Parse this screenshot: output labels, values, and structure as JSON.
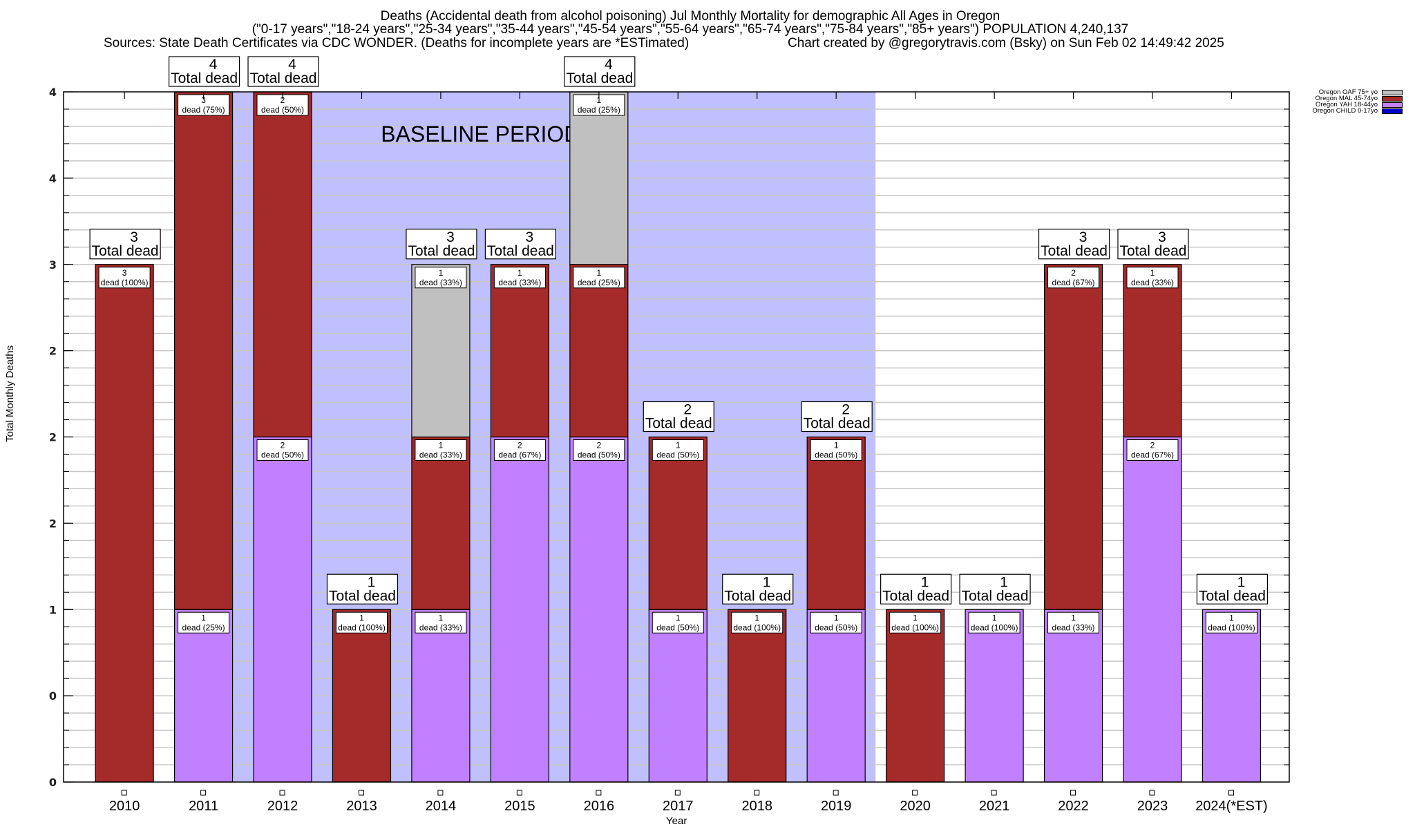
{
  "header": {
    "title_line1": "Deaths (Accidental death from alcohol poisoning) Jul Monthly Mortality for demographic All Ages in Oregon",
    "title_line2": "(\"0-17 years\",\"18-24 years\",\"25-34 years\",\"35-44 years\",\"45-54 years\",\"55-64 years\",\"65-74 years\",\"75-84 years\",\"85+ years\") POPULATION 4,240,137",
    "sources": "Sources: State Death Certificates via CDC WONDER. (Deaths for incomplete years are *ESTimated)",
    "credit": "Chart created by @gregorytravis.com (Bsky) on Sun Feb 02 14:49:42 2025"
  },
  "colors": {
    "OAF": "#c0c0c0",
    "MAL": "#a52a2a",
    "YAH": "#c080ff",
    "CHILD": "#0000cd",
    "baseline": "#c0c0ff",
    "grid": "#c8c8c8"
  },
  "chart_data": {
    "type": "bar",
    "stacked": true,
    "title": "Deaths (Accidental death from alcohol poisoning) Jul Monthly Mortality for demographic All Ages in Oregon",
    "xlabel": "Year",
    "ylabel": "Total Monthly Deaths",
    "ylim": [
      0,
      4
    ],
    "yticks": [
      0,
      0.5,
      1,
      1.5,
      2,
      2.5,
      3,
      3.5,
      4
    ],
    "ytick_labels": [
      "0",
      "0",
      "1",
      "2",
      "2",
      "2",
      "3",
      "4",
      "4"
    ],
    "grid": true,
    "legend_position": "top-right",
    "categories": [
      "2010",
      "2011",
      "2012",
      "2013",
      "2014",
      "2015",
      "2016",
      "2017",
      "2018",
      "2019",
      "2020",
      "2021",
      "2022",
      "2023",
      "2024(*EST)"
    ],
    "series": [
      {
        "key": "CHILD",
        "name": "Oregon CHILD 0-17yo",
        "values": [
          0,
          0,
          0,
          0,
          0,
          0,
          0,
          0,
          0,
          0,
          0,
          0,
          0,
          0,
          0
        ]
      },
      {
        "key": "YAH",
        "name": "Oregon YAH 18-44yo",
        "values": [
          0,
          1,
          2,
          0,
          1,
          2,
          2,
          1,
          0,
          1,
          0,
          1,
          1,
          2,
          1
        ]
      },
      {
        "key": "MAL",
        "name": "Oregon MAL 45-74yo",
        "values": [
          3,
          3,
          2,
          1,
          1,
          1,
          1,
          1,
          1,
          1,
          1,
          0,
          2,
          1,
          0
        ]
      },
      {
        "key": "OAF",
        "name": "Oregon OAF 75+ yo",
        "values": [
          0,
          0,
          0,
          0,
          1,
          0,
          1,
          0,
          0,
          0,
          0,
          0,
          0,
          0,
          0
        ]
      }
    ],
    "totals": [
      3,
      4,
      4,
      1,
      3,
      3,
      4,
      2,
      1,
      2,
      1,
      1,
      3,
      3,
      1
    ],
    "total_label_suffix": "Total dead",
    "segment_label_suffix": "dead",
    "baseline_period": {
      "label": "BASELINE PERIOD",
      "from_category": "2012",
      "to_category": "2019"
    },
    "legend_order": [
      "OAF",
      "MAL",
      "YAH",
      "CHILD"
    ]
  }
}
